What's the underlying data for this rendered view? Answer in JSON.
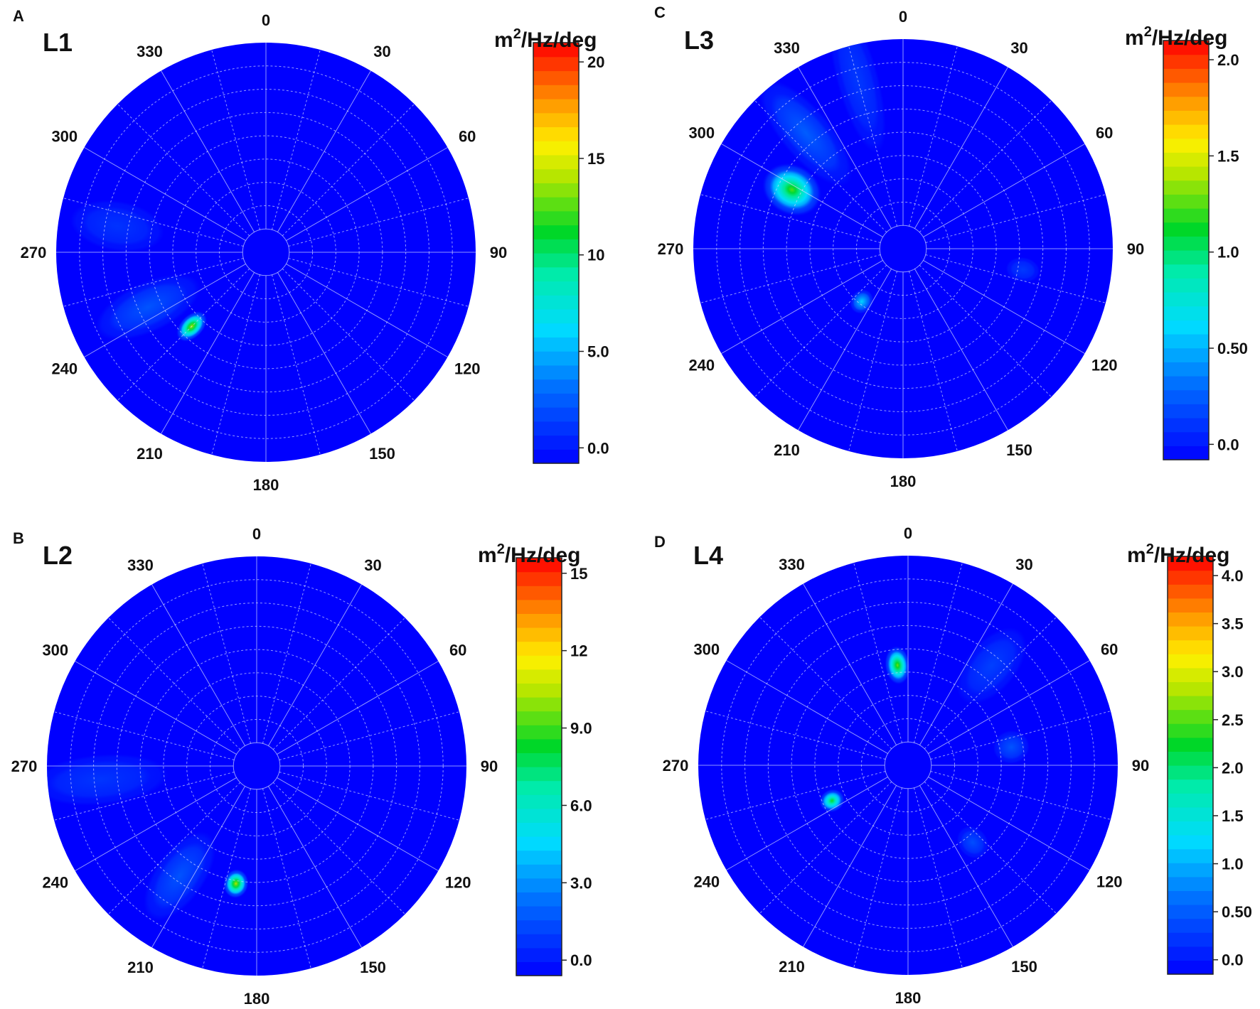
{
  "chart_data": [
    {
      "panel_letter": "A",
      "title": "L1",
      "type": "heatmap",
      "colorbar_label": "m²/Hz/deg",
      "colorbar_ticks": [
        "0.0",
        "5.0",
        "10",
        "15",
        "20"
      ],
      "colorbar_tick_values": [
        0,
        5,
        10,
        15,
        20
      ],
      "colorbar_range": [
        -0.8,
        21
      ],
      "angle_labels": [
        "0",
        "30",
        "60",
        "90",
        "120",
        "150",
        "180",
        "210",
        "240",
        "270",
        "300",
        "330"
      ],
      "peaks": [
        {
          "direction_deg": 225,
          "radius_fraction": 0.5,
          "value": 14,
          "spread_deg": 10,
          "spread_r": 0.055
        },
        {
          "direction_deg": 245,
          "radius_fraction": 0.62,
          "value": 2.2,
          "spread_deg": 25,
          "spread_r": 0.12
        },
        {
          "direction_deg": 280,
          "radius_fraction": 0.72,
          "value": 1.0,
          "spread_deg": 18,
          "spread_r": 0.12
        }
      ]
    },
    {
      "panel_letter": "B",
      "title": "L2",
      "type": "heatmap",
      "colorbar_label": "m²/Hz/deg",
      "colorbar_ticks": [
        "0.0",
        "3.0",
        "6.0",
        "9.0",
        "12",
        "15"
      ],
      "colorbar_tick_values": [
        0,
        3,
        6,
        9,
        12,
        15
      ],
      "colorbar_range": [
        -0.6,
        15.6
      ],
      "angle_labels": [
        "0",
        "30",
        "60",
        "90",
        "120",
        "150",
        "180",
        "210",
        "240",
        "270",
        "300",
        "330"
      ],
      "peaks": [
        {
          "direction_deg": 190,
          "radius_fraction": 0.57,
          "value": 10.5,
          "spread_deg": 7,
          "spread_r": 0.06
        },
        {
          "direction_deg": 215,
          "radius_fraction": 0.64,
          "value": 1.6,
          "spread_deg": 22,
          "spread_r": 0.12
        },
        {
          "direction_deg": 265,
          "radius_fraction": 0.75,
          "value": 0.8,
          "spread_deg": 25,
          "spread_r": 0.12
        }
      ]
    },
    {
      "panel_letter": "C",
      "title": "L3",
      "type": "heatmap",
      "colorbar_label": "m²/Hz/deg",
      "colorbar_ticks": [
        "0.0",
        "0.50",
        "1.0",
        "1.5",
        "2.0"
      ],
      "colorbar_tick_values": [
        0,
        0.5,
        1.0,
        1.5,
        2.0
      ],
      "colorbar_range": [
        -0.08,
        2.1
      ],
      "angle_labels": [
        "0",
        "30",
        "60",
        "90",
        "120",
        "150",
        "180",
        "210",
        "240",
        "270",
        "300",
        "330"
      ],
      "peaks": [
        {
          "direction_deg": 298,
          "radius_fraction": 0.6,
          "value": 1.25,
          "spread_deg": 14,
          "spread_r": 0.12
        },
        {
          "direction_deg": 320,
          "radius_fraction": 0.72,
          "value": 0.25,
          "spread_deg": 25,
          "spread_r": 0.12
        },
        {
          "direction_deg": 345,
          "radius_fraction": 0.84,
          "value": 0.12,
          "spread_deg": 25,
          "spread_r": 0.1
        },
        {
          "direction_deg": 218,
          "radius_fraction": 0.32,
          "value": 0.6,
          "spread_deg": 10,
          "spread_r": 0.05
        },
        {
          "direction_deg": 100,
          "radius_fraction": 0.58,
          "value": 0.12,
          "spread_deg": 8,
          "spread_r": 0.06
        }
      ]
    },
    {
      "panel_letter": "D",
      "title": "L4",
      "type": "heatmap",
      "colorbar_label": "m²/Hz/deg",
      "colorbar_ticks": [
        "0.0",
        "0.50",
        "1.0",
        "1.5",
        "2.0",
        "2.5",
        "3.0",
        "3.5",
        "4.0"
      ],
      "colorbar_tick_values": [
        0,
        0.5,
        1.0,
        1.5,
        2.0,
        2.5,
        3.0,
        3.5,
        4.0
      ],
      "colorbar_range": [
        -0.15,
        4.2
      ],
      "angle_labels": [
        "0",
        "30",
        "60",
        "90",
        "120",
        "150",
        "180",
        "210",
        "240",
        "270",
        "300",
        "330"
      ],
      "peaks": [
        {
          "direction_deg": 354,
          "radius_fraction": 0.48,
          "value": 2.6,
          "spread_deg": 11,
          "spread_r": 0.06
        },
        {
          "direction_deg": 245,
          "radius_fraction": 0.4,
          "value": 2.3,
          "spread_deg": 8,
          "spread_r": 0.05
        },
        {
          "direction_deg": 40,
          "radius_fraction": 0.62,
          "value": 0.3,
          "spread_deg": 20,
          "spread_r": 0.12
        },
        {
          "direction_deg": 80,
          "radius_fraction": 0.5,
          "value": 0.45,
          "spread_deg": 10,
          "spread_r": 0.08
        },
        {
          "direction_deg": 140,
          "radius_fraction": 0.48,
          "value": 0.4,
          "spread_deg": 10,
          "spread_r": 0.07
        }
      ]
    }
  ]
}
